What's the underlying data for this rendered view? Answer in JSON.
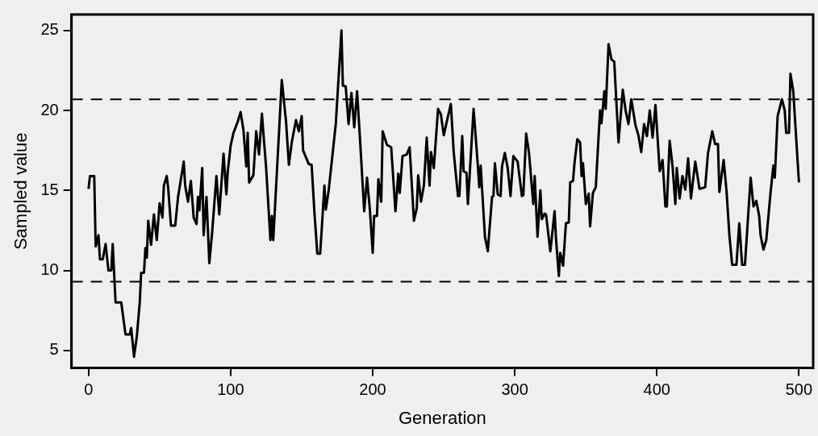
{
  "chart_data": {
    "type": "line",
    "xlabel": "Generation",
    "ylabel": "Sampled value",
    "xlim": [
      -12,
      510
    ],
    "ylim": [
      3.9,
      26
    ],
    "xticks": [
      0,
      100,
      200,
      300,
      400,
      500
    ],
    "yticks": [
      5,
      10,
      15,
      20,
      25
    ],
    "grid": false,
    "legend": false,
    "marker": "none",
    "line_style": "solid",
    "ref_lines": [
      {
        "axis": "y",
        "value": 20.7,
        "line_style": "dashed",
        "color": "#000000"
      },
      {
        "axis": "y",
        "value": 9.3,
        "line_style": "dashed",
        "color": "#000000"
      }
    ],
    "series": [
      {
        "color": "#000000",
        "x": [
          0,
          1,
          4,
          5,
          7,
          8,
          10,
          12,
          14,
          16,
          17,
          19,
          23,
          26,
          29,
          30,
          32,
          34,
          36,
          37,
          39,
          40,
          41,
          42,
          44,
          46,
          48,
          50,
          52,
          53,
          55,
          56,
          58,
          61,
          63,
          67,
          68,
          70,
          72,
          74,
          76,
          77,
          78,
          80,
          81,
          83,
          85,
          87,
          90,
          92,
          95,
          97,
          98,
          100,
          102,
          105,
          107,
          109,
          111,
          112,
          113,
          116,
          118,
          120,
          122,
          125,
          128,
          129,
          130,
          136,
          139,
          141,
          143,
          146,
          148,
          150,
          151,
          155,
          157,
          159,
          161,
          163,
          164,
          166,
          167,
          169,
          174,
          178,
          179,
          181,
          183,
          185,
          187,
          189,
          191,
          194,
          196,
          198,
          200,
          201,
          203,
          204,
          206,
          207,
          210,
          213,
          216,
          218,
          219,
          221,
          224,
          226,
          229,
          231,
          232,
          234,
          236,
          238,
          240,
          241,
          243,
          246,
          248,
          250,
          253,
          255,
          257,
          260,
          261,
          263,
          264,
          266,
          267,
          271,
          274,
          275,
          276,
          279,
          281,
          284,
          285,
          286,
          288,
          290,
          291,
          293,
          295,
          297,
          299,
          302,
          305,
          306,
          308,
          310,
          313,
          314,
          316,
          318,
          319,
          321,
          322,
          325,
          326,
          328,
          329,
          331,
          332,
          334,
          336,
          338,
          339,
          341,
          342,
          344,
          346,
          347,
          348,
          350,
          352,
          353,
          355,
          357,
          360,
          361,
          363,
          364,
          366,
          368,
          370,
          373,
          376,
          378,
          380,
          382,
          385,
          387,
          389,
          391,
          393,
          395,
          397,
          399,
          402,
          404,
          406,
          407,
          409,
          411,
          413,
          414,
          416,
          418,
          420,
          422,
          424,
          427,
          430,
          434,
          436,
          439,
          441,
          443,
          444,
          447,
          449,
          451,
          453,
          456,
          458,
          460,
          462,
          464,
          466,
          468,
          470,
          472,
          473,
          475,
          477,
          480,
          482,
          483,
          485,
          488,
          490,
          491,
          493,
          494,
          496,
          500
        ],
        "values": [
          15.1,
          15.9,
          15.9,
          11.5,
          12.2,
          10.7,
          10.7,
          11.65,
          10.0,
          10.0,
          11.65,
          8.0,
          8.0,
          6.0,
          6.0,
          6.4,
          4.6,
          5.9,
          7.95,
          9.85,
          9.85,
          11.4,
          10.8,
          13.1,
          11.6,
          13.5,
          11.9,
          14.2,
          13.3,
          15.3,
          15.9,
          15.2,
          12.8,
          12.8,
          14.6,
          16.8,
          15.3,
          14.3,
          15.6,
          13.3,
          12.9,
          14.6,
          13.75,
          16.4,
          12.2,
          14.6,
          10.45,
          12.4,
          15.9,
          13.5,
          17.3,
          14.75,
          16.2,
          17.8,
          18.6,
          19.3,
          19.9,
          18.8,
          16.5,
          18.6,
          15.5,
          15.95,
          18.7,
          17.25,
          19.8,
          16.4,
          11.9,
          13.4,
          11.9,
          21.9,
          19.3,
          16.6,
          18.0,
          19.4,
          18.7,
          19.65,
          17.5,
          16.65,
          16.6,
          13.6,
          11.05,
          11.05,
          12.4,
          15.3,
          13.8,
          15.0,
          19.15,
          25.0,
          21.55,
          21.5,
          19.15,
          21.1,
          18.95,
          21.2,
          18.3,
          13.7,
          15.8,
          13.8,
          11.1,
          13.4,
          13.4,
          15.7,
          14.3,
          18.7,
          17.85,
          17.7,
          13.7,
          16.05,
          14.85,
          17.15,
          17.25,
          17.7,
          13.1,
          13.9,
          15.95,
          14.3,
          15.3,
          18.3,
          15.3,
          17.4,
          16.4,
          20.1,
          19.75,
          18.45,
          19.65,
          20.4,
          17.4,
          14.65,
          14.65,
          18.4,
          16.2,
          16.1,
          14.15,
          20.1,
          16.55,
          15.2,
          16.55,
          12.1,
          11.2,
          14.6,
          14.65,
          16.7,
          14.75,
          14.65,
          16.5,
          17.35,
          16.4,
          14.65,
          17.15,
          16.8,
          14.65,
          14.7,
          18.55,
          17.35,
          14.15,
          15.9,
          12.1,
          15.0,
          13.2,
          13.55,
          13.5,
          11.2,
          12.0,
          13.7,
          12.0,
          9.65,
          11.1,
          10.3,
          12.95,
          13.0,
          15.5,
          15.6,
          16.7,
          18.2,
          18.0,
          15.9,
          16.7,
          14.15,
          14.8,
          12.75,
          14.85,
          15.2,
          20.0,
          19.2,
          21.2,
          20.1,
          24.15,
          23.2,
          23.05,
          18.0,
          21.3,
          20.0,
          19.15,
          20.7,
          19.05,
          18.45,
          17.4,
          19.15,
          18.4,
          20.0,
          18.3,
          20.35,
          16.2,
          16.9,
          14.0,
          14.0,
          18.1,
          16.55,
          14.15,
          16.4,
          14.5,
          15.9,
          15.05,
          17.0,
          14.5,
          16.8,
          15.1,
          15.2,
          17.35,
          18.7,
          17.9,
          17.9,
          14.9,
          16.9,
          15.0,
          12.25,
          10.35,
          10.35,
          12.95,
          10.35,
          10.35,
          13.1,
          15.8,
          14.0,
          14.35,
          13.4,
          12.2,
          11.3,
          11.9,
          14.85,
          16.55,
          15.8,
          19.65,
          20.7,
          20.0,
          18.6,
          18.6,
          22.3,
          21.2,
          15.5
        ]
      }
    ]
  }
}
